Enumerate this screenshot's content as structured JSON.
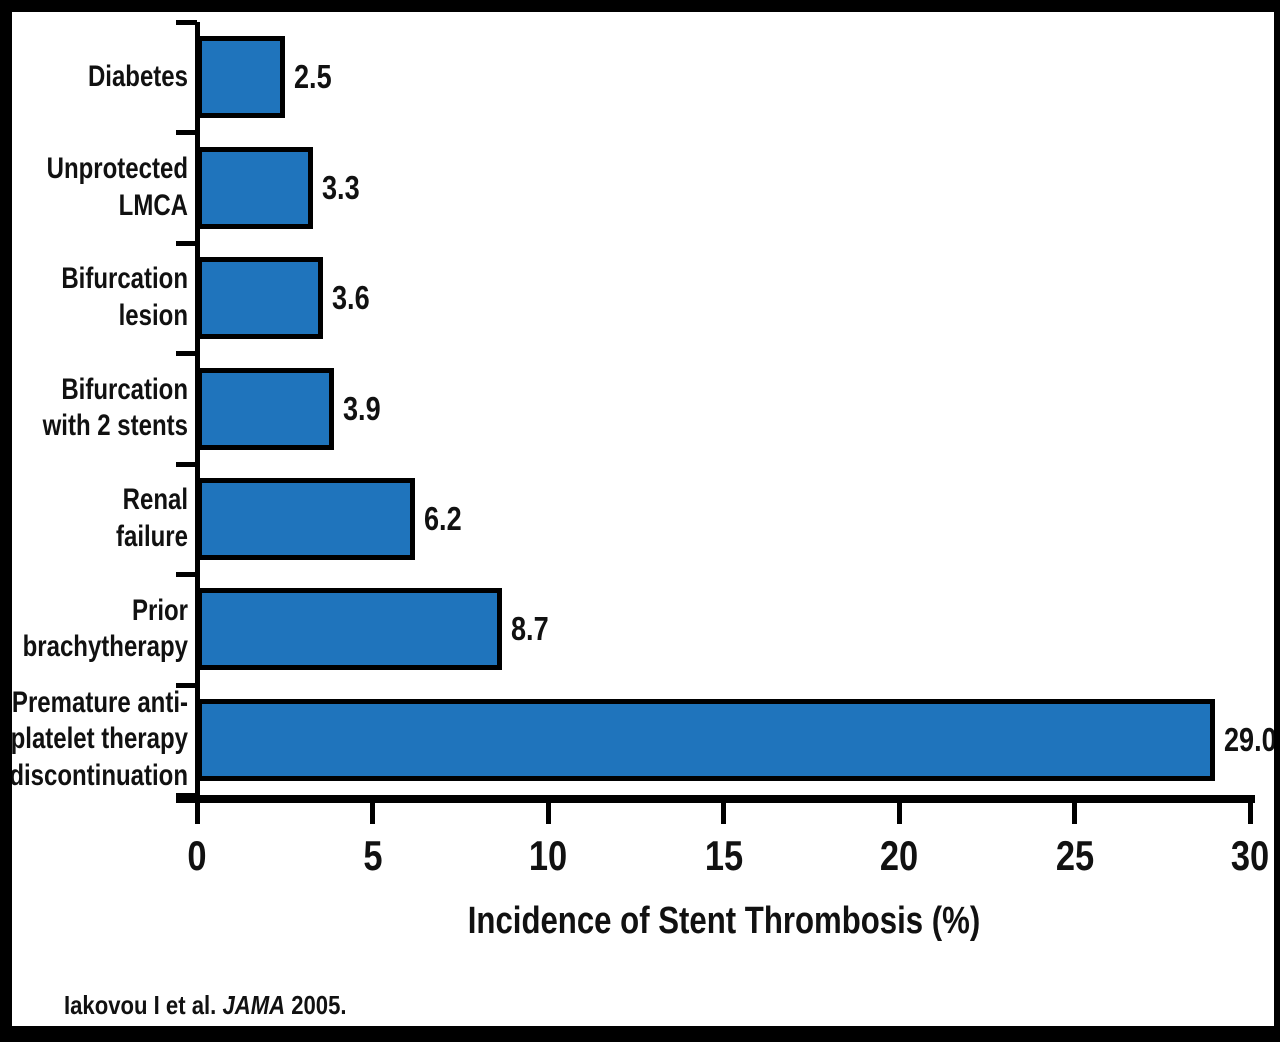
{
  "chart_data": {
    "type": "bar",
    "orientation": "horizontal",
    "categories": [
      [
        "Diabetes"
      ],
      [
        "Unprotected",
        "LMCA"
      ],
      [
        "Bifurcation",
        "lesion"
      ],
      [
        "Bifurcation",
        "with 2 stents"
      ],
      [
        "Renal",
        "failure"
      ],
      [
        "Prior",
        "brachytherapy"
      ],
      [
        "Premature anti-",
        "platelet therapy",
        "discontinuation"
      ]
    ],
    "values": [
      2.5,
      3.3,
      3.6,
      3.9,
      6.2,
      8.7,
      29.0
    ],
    "value_labels": [
      "2.5",
      "3.3",
      "3.6",
      "3.9",
      "6.2",
      "8.7",
      "29.0"
    ],
    "xlabel": "Incidence of Stent Thrombosis (%)",
    "xlim": [
      0,
      30
    ],
    "xticks": [
      0,
      5,
      10,
      15,
      20,
      25,
      30
    ],
    "grid": false,
    "bar_color": "#1f74bc",
    "bar_border_color": "#000000",
    "frame_color": "#000000",
    "background_color": "#ffffff"
  },
  "citation": {
    "prefix": "Iakovou I et al. ",
    "journal": "JAMA",
    "suffix": " 2005."
  }
}
